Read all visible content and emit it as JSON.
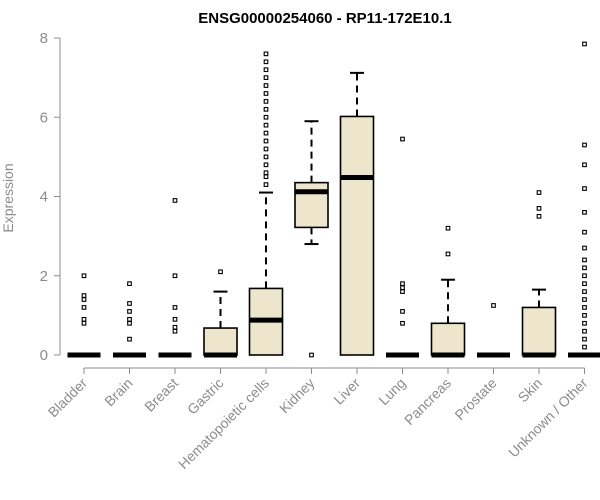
{
  "chart_data": {
    "type": "boxplot",
    "title": "ENSG00000254060 - RP11-172E10.1",
    "ylabel": "Expression",
    "xlabel": "",
    "ylim": [
      0,
      8
    ],
    "yticks": [
      0,
      2,
      4,
      6,
      8
    ],
    "grid": false,
    "box_fill": "#ede6cc",
    "outline_color": "#000000",
    "categories": [
      "Bladder",
      "Brain",
      "Breast",
      "Gastric",
      "Hematopoietic cells",
      "Kidney",
      "Liver",
      "Lung",
      "Pancreas",
      "Prostate",
      "Skin",
      "Unknown / Other"
    ],
    "boxes": [
      {
        "category": "Bladder",
        "q1": 0,
        "median": 0,
        "q3": 0,
        "whisker_low": 0,
        "whisker_high": 0,
        "outliers": [
          0.8,
          0.9,
          1.2,
          1.4,
          1.5,
          2.0
        ]
      },
      {
        "category": "Brain",
        "q1": 0,
        "median": 0,
        "q3": 0,
        "whisker_low": 0,
        "whisker_high": 0,
        "outliers": [
          0.4,
          0.8,
          0.9,
          1.1,
          1.3,
          1.8
        ]
      },
      {
        "category": "Breast",
        "q1": 0,
        "median": 0,
        "q3": 0,
        "whisker_low": 0,
        "whisker_high": 0,
        "outliers": [
          0.6,
          0.7,
          0.9,
          1.2,
          2.0,
          3.9
        ]
      },
      {
        "category": "Gastric",
        "q1": 0,
        "median": 0,
        "q3": 0.68,
        "whisker_low": 0,
        "whisker_high": 1.6,
        "outliers": [
          2.1
        ]
      },
      {
        "category": "Hematopoietic cells",
        "q1": 0,
        "median": 0.88,
        "q3": 1.68,
        "whisker_low": 0,
        "whisker_high": 4.1,
        "outliers": [
          4.3,
          4.5,
          4.6,
          4.8,
          5.0,
          5.2,
          5.4,
          5.6,
          5.8,
          6.0,
          6.2,
          6.4,
          6.6,
          6.8,
          7.0,
          7.2,
          7.4,
          7.6
        ]
      },
      {
        "category": "Kidney",
        "q1": 3.22,
        "median": 4.12,
        "q3": 4.35,
        "whisker_low": 2.8,
        "whisker_high": 5.9,
        "outliers": [
          0
        ]
      },
      {
        "category": "Liver",
        "q1": 0,
        "median": 4.48,
        "q3": 6.02,
        "whisker_low": 0,
        "whisker_high": 7.12,
        "outliers": []
      },
      {
        "category": "Lung",
        "q1": 0,
        "median": 0,
        "q3": 0,
        "whisker_low": 0,
        "whisker_high": 0,
        "outliers": [
          0.8,
          1.1,
          1.6,
          1.7,
          1.8,
          5.45
        ]
      },
      {
        "category": "Pancreas",
        "q1": 0,
        "median": 0,
        "q3": 0.8,
        "whisker_low": 0,
        "whisker_high": 1.9,
        "outliers": [
          2.55,
          3.2
        ]
      },
      {
        "category": "Prostate",
        "q1": 0,
        "median": 0,
        "q3": 0,
        "whisker_low": 0,
        "whisker_high": 0,
        "outliers": [
          1.25
        ]
      },
      {
        "category": "Skin",
        "q1": 0,
        "median": 0,
        "q3": 1.2,
        "whisker_low": 0,
        "whisker_high": 1.65,
        "outliers": [
          3.5,
          3.7,
          4.1
        ]
      },
      {
        "category": "Unknown / Other",
        "q1": 0,
        "median": 0,
        "q3": 0,
        "whisker_low": 0,
        "whisker_high": 0,
        "outliers": [
          0.2,
          0.4,
          0.6,
          0.8,
          1.0,
          1.2,
          1.4,
          1.6,
          1.8,
          2.0,
          2.2,
          2.4,
          2.7,
          3.1,
          3.6,
          4.2,
          4.8,
          5.3,
          7.85
        ]
      }
    ]
  }
}
